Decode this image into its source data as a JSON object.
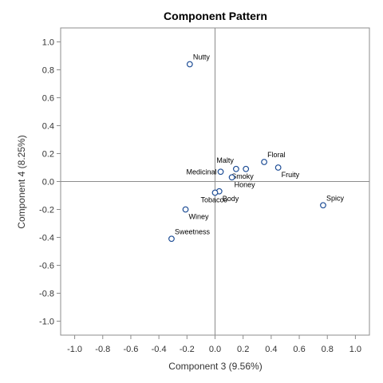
{
  "chart_data": {
    "type": "scatter",
    "title": "Component Pattern",
    "xlabel": "Component 3 (9.56%)",
    "ylabel": "Component 4 (8.25%)",
    "xlim": [
      -1.1,
      1.1
    ],
    "ylim": [
      -1.1,
      1.1
    ],
    "xticks": [
      "-1.0",
      "-0.8",
      "-0.6",
      "-0.4",
      "-0.2",
      "0.0",
      "0.2",
      "0.4",
      "0.6",
      "0.8",
      "1.0"
    ],
    "yticks": [
      "1.0",
      "0.8",
      "0.6",
      "0.4",
      "0.2",
      "0.0",
      "-0.2",
      "-0.4",
      "-0.6",
      "-0.8",
      "-1.0"
    ],
    "grid": false,
    "reference_lines": {
      "x": 0,
      "y": 0
    },
    "marker_color": "#1f4e96",
    "points": [
      {
        "label": "Nutty",
        "x": -0.18,
        "y": 0.84,
        "anchor": "ne"
      },
      {
        "label": "Floral",
        "x": 0.35,
        "y": 0.14,
        "anchor": "ne"
      },
      {
        "label": "Malty",
        "x": 0.15,
        "y": 0.09,
        "anchor": "nw"
      },
      {
        "label": "Medicinal",
        "x": 0.04,
        "y": 0.07,
        "anchor": "w"
      },
      {
        "label": "Fruity",
        "x": 0.45,
        "y": 0.1,
        "anchor": "se"
      },
      {
        "label": "Smoky",
        "x": 0.22,
        "y": 0.09,
        "anchor": "sw"
      },
      {
        "label": "Honey",
        "x": 0.12,
        "y": 0.03,
        "anchor": "s"
      },
      {
        "label": "Body",
        "x": 0.03,
        "y": -0.07,
        "anchor": "se"
      },
      {
        "label": "Tobacco",
        "x": 0.0,
        "y": -0.08,
        "anchor": "sw"
      },
      {
        "label": "Spicy",
        "x": 0.77,
        "y": -0.17,
        "anchor": "ne"
      },
      {
        "label": "Winey",
        "x": -0.21,
        "y": -0.2,
        "anchor": "se"
      },
      {
        "label": "Sweetness",
        "x": -0.31,
        "y": -0.41,
        "anchor": "ne"
      }
    ]
  }
}
